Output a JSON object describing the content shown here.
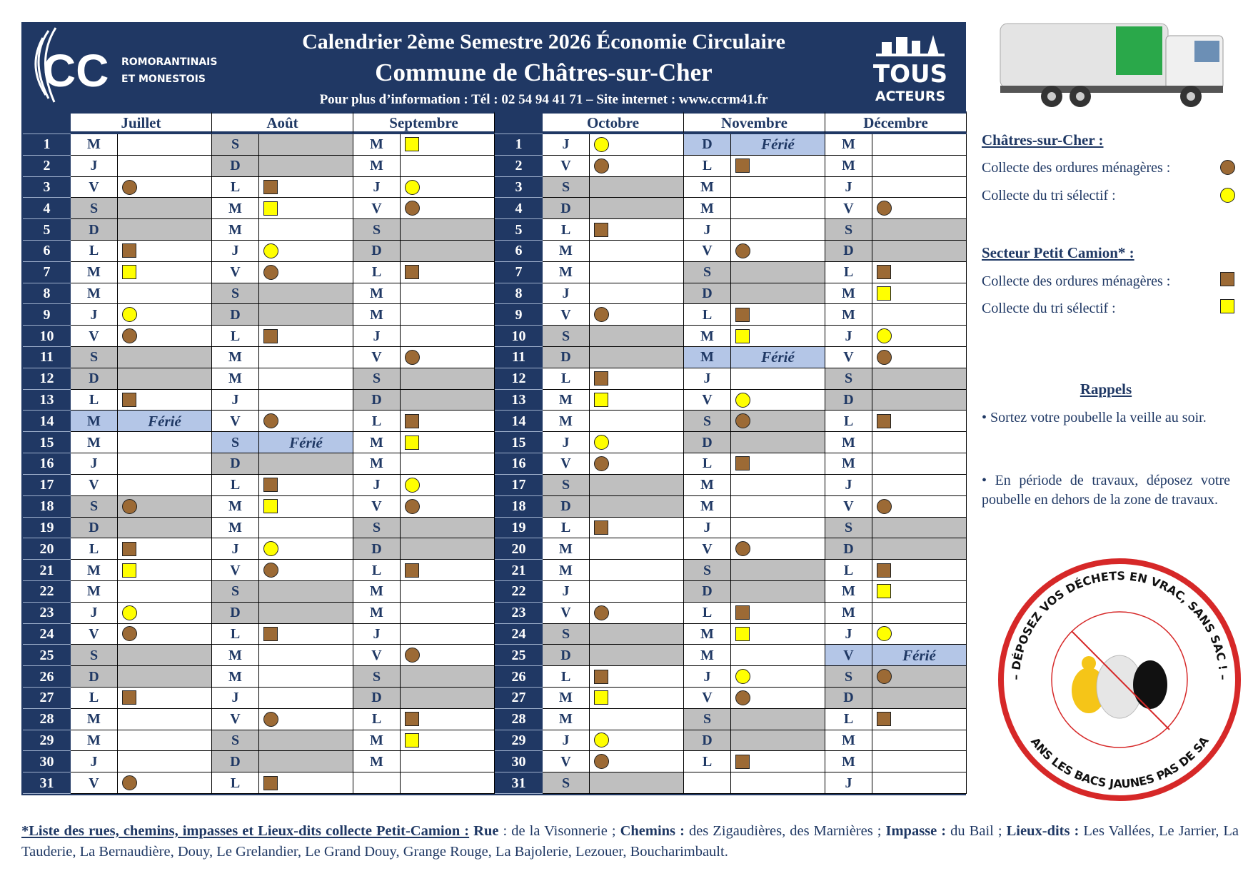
{
  "header": {
    "title": "Calendrier 2ème Semestre 2026 Économie Circulaire",
    "subtitle": "Commune de Châtres-sur-Cher",
    "info": "Pour plus d’information : Tél : 02 54 94 41 71 – Site internet : www.ccrm41.fr",
    "logo_left_lines": [
      "ROMORANTINAIS",
      "ET MONESTOIS"
    ],
    "logo_right_lines": [
      "TOUS",
      "ACTEURS"
    ]
  },
  "colors": {
    "navy": "#203864",
    "weekend": "#bfbfbf",
    "holiday": "#b4c6e7",
    "brown": "#9c6a35",
    "yellow": "#ffff00"
  },
  "marker_codes": {
    "c": "brown-circle",
    "y": "yellow-circle",
    "s": "brown-square",
    "q": "yellow-square",
    "F": "holiday"
  },
  "ferie_label": "Férié",
  "months": [
    {
      "name": "Juillet",
      "days": [
        "M|",
        "J|",
        "V|c",
        "S|",
        "D|",
        "L|s",
        "M|q",
        "M|",
        "J|y",
        "V|c",
        "S|",
        "D|",
        "L|s",
        "M|F",
        "M|",
        "J|",
        "V|",
        "S|c",
        "D|",
        "L|s",
        "M|q",
        "M|",
        "J|y",
        "V|c",
        "S|",
        "D|",
        "L|s",
        "M|",
        "M|",
        "J|",
        "V|c"
      ]
    },
    {
      "name": "Août",
      "days": [
        "S|",
        "D|",
        "L|s",
        "M|q",
        "M|",
        "J|y",
        "V|c",
        "S|",
        "D|",
        "L|s",
        "M|",
        "M|",
        "J|",
        "V|c",
        "S|F",
        "D|",
        "L|s",
        "M|q",
        "M|",
        "J|y",
        "V|c",
        "S|",
        "D|",
        "L|s",
        "M|",
        "M|",
        "J|",
        "V|c",
        "S|",
        "D|",
        "L|s"
      ]
    },
    {
      "name": "Septembre",
      "days": [
        "M|q",
        "M|",
        "J|y",
        "V|c",
        "S|",
        "D|",
        "L|s",
        "M|",
        "M|",
        "J|",
        "V|c",
        "S|",
        "D|",
        "L|s",
        "M|q",
        "M|",
        "J|y",
        "V|c",
        "S|",
        "D|",
        "L|s",
        "M|",
        "M|",
        "J|",
        "V|c",
        "S|",
        "D|",
        "L|s",
        "M|q",
        "M|"
      ]
    },
    {
      "name": "Octobre",
      "days": [
        "J|y",
        "V|c",
        "S|",
        "D|",
        "L|s",
        "M|",
        "M|",
        "J|",
        "V|c",
        "S|",
        "D|",
        "L|s",
        "M|q",
        "M|",
        "J|y",
        "V|c",
        "S|",
        "D|",
        "L|s",
        "M|",
        "M|",
        "J|",
        "V|c",
        "S|",
        "D|",
        "L|s",
        "M|q",
        "M|",
        "J|y",
        "V|c",
        "S|"
      ]
    },
    {
      "name": "Novembre",
      "days": [
        "D|F",
        "L|s",
        "M|",
        "M|",
        "J|",
        "V|c",
        "S|",
        "D|",
        "L|s",
        "M|q",
        "M|F",
        "J|",
        "V|y",
        "S|c",
        "D|",
        "L|s",
        "M|",
        "M|",
        "J|",
        "V|c",
        "S|",
        "D|",
        "L|s",
        "M|q",
        "M|",
        "J|y",
        "V|c",
        "S|",
        "D|",
        "L|s"
      ]
    },
    {
      "name": "Décembre",
      "days": [
        "M|",
        "M|",
        "J|",
        "V|c",
        "S|",
        "D|",
        "L|s",
        "M|q",
        "M|",
        "J|y",
        "V|c",
        "S|",
        "D|",
        "L|s",
        "M|",
        "M|",
        "J|",
        "V|c",
        "S|",
        "D|",
        "L|s",
        "M|q",
        "M|",
        "J|y",
        "V|F",
        "S|c",
        "D|",
        "L|s",
        "M|",
        "M|",
        "J|"
      ]
    }
  ],
  "legend": {
    "section1_title": "Châtres-sur-Cher :",
    "section1_items": [
      "Collecte des ordures ménagères :",
      "Collecte du tri sélectif :"
    ],
    "section2_title": "Secteur Petit Camion* :",
    "section2_items": [
      "Collecte des ordures ménagères :",
      "Collecte du tri sélectif :"
    ]
  },
  "reminders": {
    "title": "Rappels",
    "items": [
      "• Sortez votre poubelle la veille au soir.",
      "• En période de travaux, déposez votre poubelle en dehors de la zone de travaux."
    ]
  },
  "sticker": {
    "top_text": "– DÉPOSEZ VOS DÉCHETS EN VRAC, SANS SAC ! –",
    "bottom_text": "DANS LES BACS JAUNES PAS DE SAC"
  },
  "footer": {
    "heading": "*Liste des rues, chemins, impasses et Lieux-dits collecte Petit-Camion :",
    "rue_label": "Rue",
    "rue_text": " : de la Visonnerie ; ",
    "chemins_label": "Chemins :",
    "chemins_text": " des Zigaudières, des Marnières ; ",
    "impasse_label": "Impasse :",
    "impasse_text": " du Bail ; ",
    "lieux_label": "Lieux-dits :",
    "lieux_text": " Les Vallées, Le Jarrier, La Tauderie, La Bernaudière, Douy, Le Grelandier, Le Grand Douy, Grange Rouge, La Bajolerie, Lezouer, Boucharimbault."
  }
}
